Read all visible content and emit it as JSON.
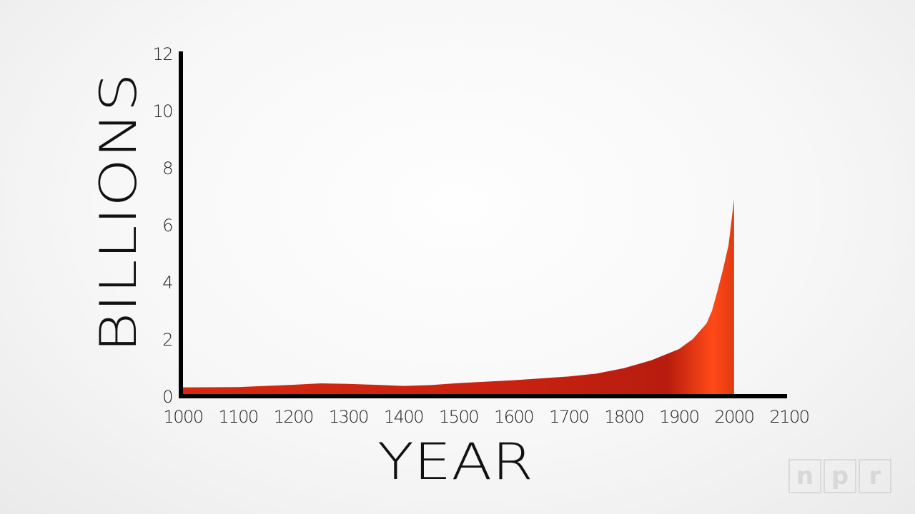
{
  "chart_data": {
    "type": "area",
    "xlabel": "YEAR",
    "ylabel": "BILLIONS",
    "xlim": [
      1000,
      2100
    ],
    "ylim": [
      0,
      12
    ],
    "x_ticks": [
      "1000",
      "1100",
      "1200",
      "1300",
      "1400",
      "1500",
      "1600",
      "1700",
      "1800",
      "1900",
      "2000",
      "2100"
    ],
    "y_ticks": [
      "0",
      "2",
      "4",
      "6",
      "8",
      "10",
      "12"
    ],
    "x": [
      1000,
      1100,
      1200,
      1250,
      1300,
      1350,
      1400,
      1450,
      1500,
      1600,
      1700,
      1750,
      1800,
      1850,
      1900,
      1925,
      1950,
      1960,
      1970,
      1980,
      1990,
      2000
    ],
    "series": [
      {
        "values": [
          0.31,
          0.32,
          0.4,
          0.45,
          0.43,
          0.4,
          0.36,
          0.39,
          0.46,
          0.56,
          0.69,
          0.79,
          0.98,
          1.26,
          1.65,
          2.0,
          2.55,
          3.0,
          3.7,
          4.45,
          5.3,
          6.9
        ],
        "color": "#c0200f"
      }
    ],
    "grid": false,
    "legend": "none"
  },
  "watermark": {
    "letters": [
      "n",
      "p",
      "r"
    ]
  }
}
